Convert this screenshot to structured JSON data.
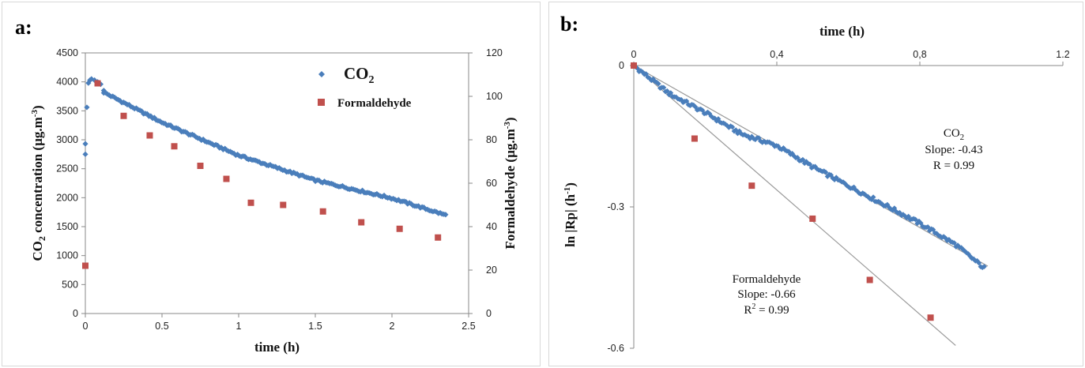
{
  "panel_a": {
    "label": "a:",
    "chart_data": {
      "type": "scatter",
      "xlabel": "time (h)",
      "ylabel_left_main": "CO",
      "ylabel_left_sub": "2",
      "ylabel_left_rest": " concentration  (µg.m",
      "ylabel_left_sup": "-3",
      "ylabel_left_end": ")",
      "ylabel_right_main": "Formaldehyde  (µg.m",
      "ylabel_right_sup": "-3",
      "ylabel_right_end": ")",
      "xlim": [
        0,
        2.5
      ],
      "ylim_left": [
        0,
        4500
      ],
      "ylim_right": [
        0,
        120
      ],
      "x_ticks": [
        "0",
        "0.5",
        "1",
        "1.5",
        "2",
        "2.5"
      ],
      "y_left_ticks": [
        "0",
        "500",
        "1000",
        "1500",
        "2000",
        "2500",
        "3000",
        "3500",
        "4000",
        "4500"
      ],
      "y_right_ticks": [
        "0",
        "20",
        "40",
        "60",
        "80",
        "100",
        "120"
      ],
      "legend": [
        {
          "main": "CO",
          "sub": "2"
        },
        {
          "main": "Formaldehyde",
          "sub": ""
        }
      ],
      "series": [
        {
          "key": "co2",
          "axis": "left",
          "color": "#4a7ebb",
          "marker": "diamond",
          "initial": [
            [
              0.0,
              2750
            ],
            [
              0.0,
              2930
            ],
            [
              0.01,
              3560
            ],
            [
              0.02,
              3980
            ],
            [
              0.03,
              4030
            ],
            [
              0.04,
              4050
            ],
            [
              0.06,
              4030
            ],
            [
              0.08,
              4000
            ],
            [
              0.1,
              3960
            ],
            [
              0.12,
              3850
            ]
          ],
          "segments": [
            [
              0.12,
              3820
            ],
            [
              0.5,
              3300
            ],
            [
              1.0,
              2730
            ],
            [
              1.5,
              2300
            ],
            [
              2.0,
              1990
            ],
            [
              2.35,
              1700
            ]
          ],
          "n_points": 190
        },
        {
          "key": "formaldehyde",
          "axis": "right",
          "color": "#c0504d",
          "marker": "square",
          "points": [
            [
              0.0,
              22
            ],
            [
              0.08,
              106
            ],
            [
              0.25,
              91
            ],
            [
              0.42,
              82
            ],
            [
              0.58,
              77
            ],
            [
              0.75,
              68
            ],
            [
              0.92,
              62
            ],
            [
              1.08,
              51
            ],
            [
              1.29,
              50
            ],
            [
              1.55,
              47
            ],
            [
              1.8,
              42
            ],
            [
              2.05,
              39
            ],
            [
              2.3,
              35
            ]
          ]
        }
      ]
    }
  },
  "panel_b": {
    "label": "b:",
    "chart_data": {
      "type": "scatter",
      "xlabel": "time (h)",
      "ylabel": "ln |Rp| (h",
      "ylabel_sup": "-1",
      "ylabel_end": ")",
      "xlim": [
        0,
        1.2
      ],
      "ylim": [
        -0.6,
        0
      ],
      "x_ticks": [
        "0",
        "0,4",
        "0,8",
        "1.2"
      ],
      "y_ticks": [
        "0",
        "-0.3",
        "-0.6"
      ],
      "annotations": {
        "co2": {
          "name_main": "CO",
          "name_sub": "2",
          "slope": "Slope: -0.43",
          "r": "R = 0.99"
        },
        "formaldehyde": {
          "name": "Formaldehyde",
          "slope": "Slope: -0.66",
          "r_main": "R",
          "r_sup": "2",
          "r_end": " = 0.99"
        }
      },
      "series": [
        {
          "key": "co2",
          "color": "#4a7ebb",
          "marker": "diamond",
          "segments": [
            [
              0.0,
              0.0
            ],
            [
              0.02,
              -0.012
            ],
            [
              0.1,
              -0.06
            ],
            [
              0.2,
              -0.1
            ],
            [
              0.3,
              -0.145
            ],
            [
              0.4,
              -0.17
            ],
            [
              0.5,
              -0.215
            ],
            [
              0.6,
              -0.255
            ],
            [
              0.7,
              -0.295
            ],
            [
              0.8,
              -0.335
            ],
            [
              0.9,
              -0.38
            ],
            [
              0.98,
              -0.43
            ]
          ],
          "n_points": 200
        },
        {
          "key": "formaldehyde",
          "color": "#c0504d",
          "marker": "square",
          "points": [
            [
              0.0,
              0.0
            ],
            [
              0.17,
              -0.155
            ],
            [
              0.33,
              -0.255
            ],
            [
              0.5,
              -0.325
            ],
            [
              0.66,
              -0.455
            ],
            [
              0.83,
              -0.535
            ]
          ]
        }
      ],
      "fit_lines": [
        {
          "key": "co2-fit",
          "slope": -0.43,
          "x_end": 0.99
        },
        {
          "key": "formaldehyde-fit",
          "slope": -0.66,
          "x_end": 0.9
        }
      ]
    }
  }
}
